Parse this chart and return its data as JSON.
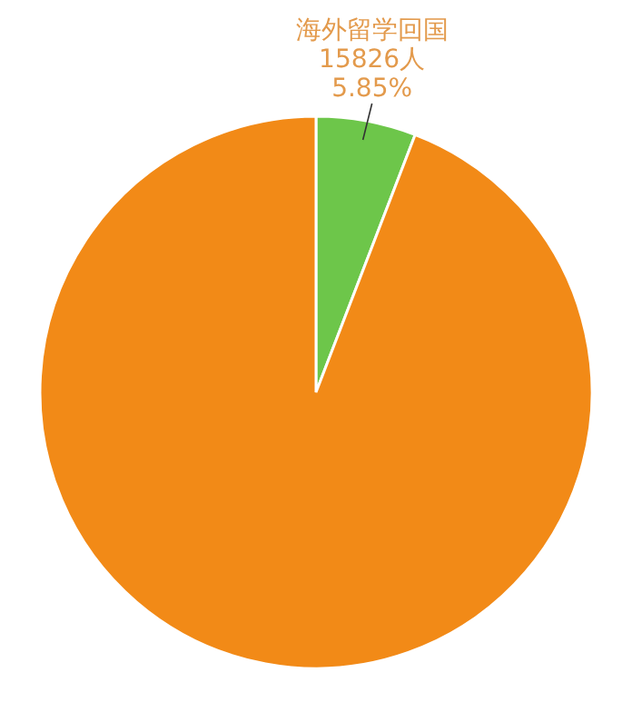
{
  "chart_data": {
    "type": "pie",
    "categories": [
      "海外留学回国",
      null
    ],
    "values": [
      5.85,
      94.15
    ],
    "colors": [
      "#6dc64a",
      "#f28a17"
    ],
    "value_labels": [
      "5.85%",
      null
    ],
    "annotations": [
      "15826人"
    ]
  }
}
